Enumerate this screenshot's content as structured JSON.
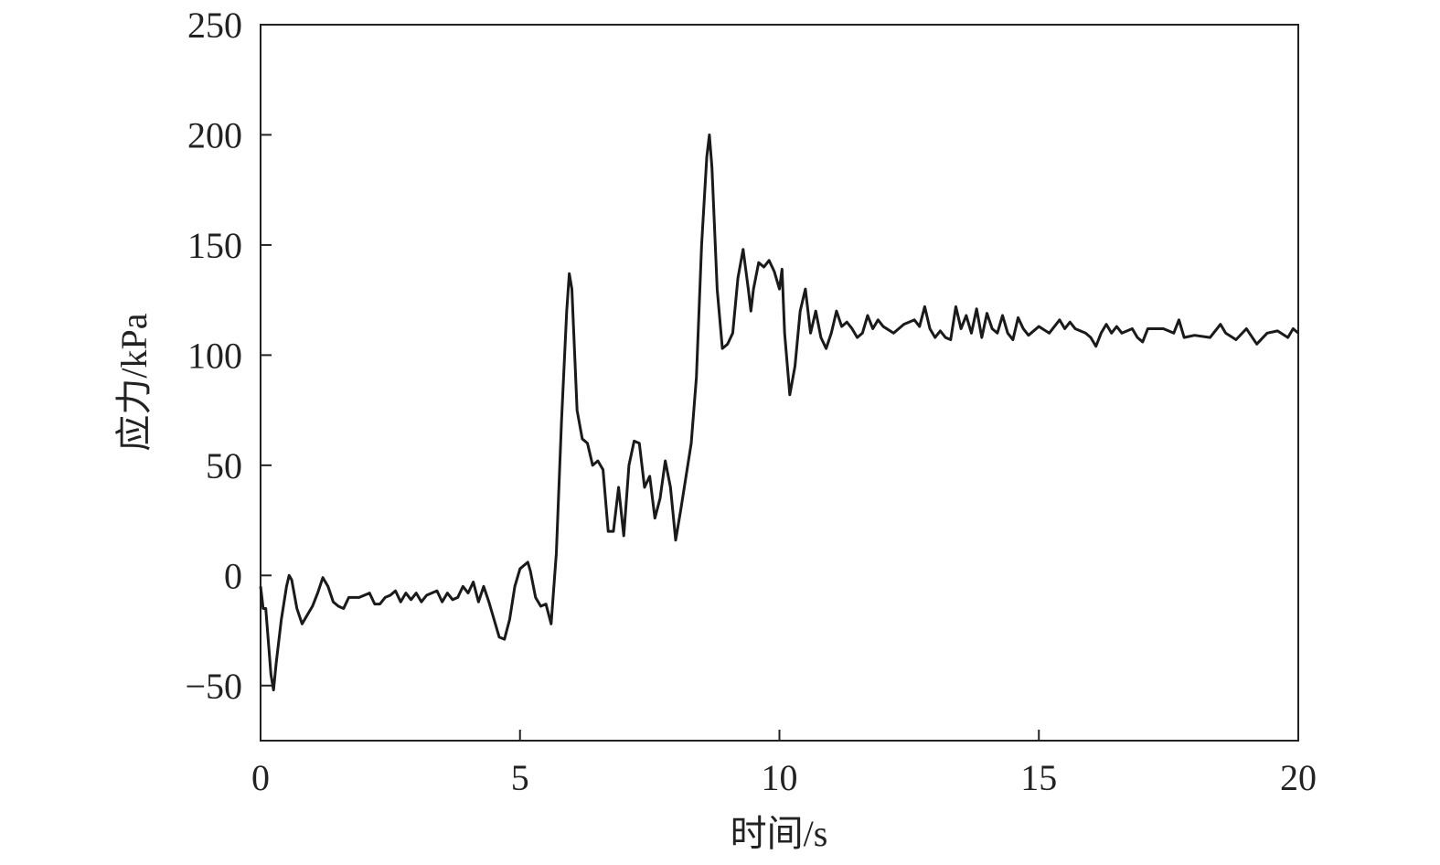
{
  "chart_data": {
    "type": "line",
    "x_label": "时间/s",
    "y_label": "应力/kPa",
    "xlim": [
      0,
      20
    ],
    "xticks": [
      0,
      5,
      10,
      15,
      20
    ],
    "ylim": [
      -75,
      250
    ],
    "yticks": [
      {
        "value": -50,
        "label": "−50"
      },
      0,
      50,
      100,
      150,
      200,
      250
    ],
    "series": [
      {
        "color": "#1a1a1a",
        "x": [
          0,
          0.05,
          0.1,
          0.2,
          0.25,
          0.3,
          0.4,
          0.5,
          0.55,
          0.6,
          0.7,
          0.8,
          0.9,
          1.0,
          1.1,
          1.2,
          1.3,
          1.4,
          1.5,
          1.6,
          1.7,
          1.8,
          1.9,
          2.0,
          2.1,
          2.2,
          2.3,
          2.4,
          2.5,
          2.6,
          2.7,
          2.8,
          2.9,
          3.0,
          3.1,
          3.2,
          3.4,
          3.5,
          3.6,
          3.7,
          3.8,
          3.9,
          4.0,
          4.1,
          4.2,
          4.3,
          4.4,
          4.5,
          4.6,
          4.7,
          4.8,
          4.9,
          5.0,
          5.1,
          5.15,
          5.2,
          5.3,
          5.4,
          5.5,
          5.6,
          5.7,
          5.8,
          5.9,
          5.95,
          6.0,
          6.1,
          6.2,
          6.3,
          6.4,
          6.5,
          6.6,
          6.7,
          6.8,
          6.9,
          7.0,
          7.1,
          7.2,
          7.3,
          7.4,
          7.5,
          7.6,
          7.7,
          7.8,
          7.9,
          8.0,
          8.1,
          8.2,
          8.3,
          8.4,
          8.5,
          8.55,
          8.6,
          8.65,
          8.7,
          8.8,
          8.9,
          9.0,
          9.1,
          9.2,
          9.3,
          9.4,
          9.45,
          9.5,
          9.6,
          9.7,
          9.8,
          9.9,
          10.0,
          10.05,
          10.1,
          10.2,
          10.3,
          10.4,
          10.5,
          10.6,
          10.7,
          10.8,
          10.9,
          11.0,
          11.1,
          11.2,
          11.3,
          11.4,
          11.5,
          11.6,
          11.7,
          11.8,
          11.9,
          12.0,
          12.2,
          12.4,
          12.6,
          12.7,
          12.8,
          12.9,
          13.0,
          13.1,
          13.2,
          13.3,
          13.4,
          13.5,
          13.6,
          13.7,
          13.8,
          13.9,
          14.0,
          14.1,
          14.2,
          14.3,
          14.4,
          14.5,
          14.6,
          14.7,
          14.8,
          15.0,
          15.2,
          15.4,
          15.5,
          15.6,
          15.7,
          15.9,
          16.0,
          16.1,
          16.2,
          16.3,
          16.4,
          16.5,
          16.6,
          16.8,
          16.9,
          17.0,
          17.1,
          17.4,
          17.6,
          17.7,
          17.8,
          18.0,
          18.3,
          18.5,
          18.6,
          18.8,
          19.0,
          19.2,
          19.4,
          19.6,
          19.8,
          19.9,
          20.0
        ],
        "values": [
          -5,
          -15,
          -15,
          -45,
          -52,
          -40,
          -20,
          -5,
          0,
          -2,
          -15,
          -22,
          -18,
          -14,
          -8,
          -1,
          -5,
          -12,
          -14,
          -15,
          -10,
          -10,
          -10,
          -9,
          -8,
          -13,
          -13,
          -10,
          -9,
          -7,
          -12,
          -8,
          -11,
          -8,
          -12,
          -9,
          -7,
          -12,
          -8,
          -11,
          -10,
          -5,
          -8,
          -3,
          -12,
          -5,
          -12,
          -20,
          -28,
          -29,
          -20,
          -5,
          3,
          5,
          6,
          2,
          -10,
          -14,
          -13,
          -22,
          10,
          70,
          120,
          137,
          130,
          75,
          62,
          60,
          50,
          52,
          48,
          20,
          20,
          40,
          18,
          50,
          61,
          60,
          40,
          45,
          26,
          35,
          52,
          40,
          16,
          30,
          45,
          60,
          90,
          150,
          170,
          190,
          200,
          185,
          130,
          103,
          105,
          110,
          135,
          148,
          130,
          120,
          130,
          142,
          140,
          143,
          138,
          130,
          139,
          110,
          82,
          95,
          120,
          130,
          110,
          120,
          108,
          103,
          110,
          120,
          113,
          115,
          112,
          108,
          110,
          118,
          112,
          116,
          113,
          110,
          114,
          116,
          113,
          122,
          112,
          108,
          111,
          108,
          107,
          122,
          112,
          118,
          110,
          121,
          108,
          119,
          112,
          110,
          118,
          110,
          107,
          117,
          112,
          109,
          113,
          110,
          116,
          112,
          115,
          112,
          110,
          108,
          104,
          110,
          114,
          110,
          113,
          110,
          112,
          108,
          106,
          112,
          112,
          110,
          116,
          108,
          109,
          108,
          114,
          110,
          107,
          112,
          105,
          110,
          111,
          108,
          112,
          110
        ]
      }
    ]
  }
}
